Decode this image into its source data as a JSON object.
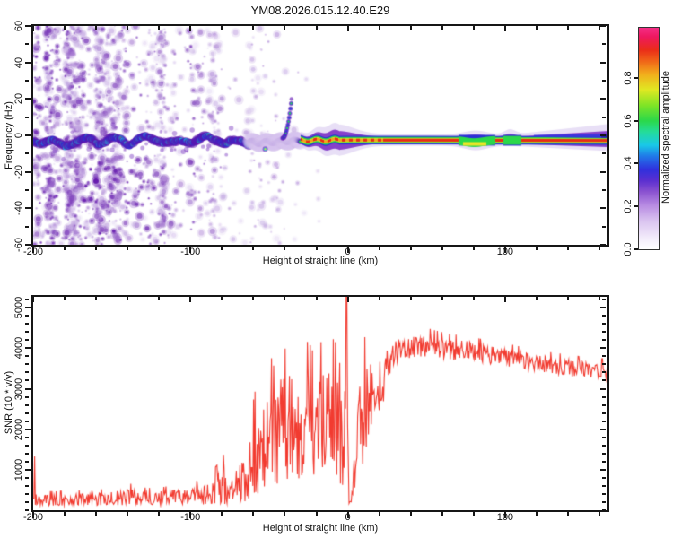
{
  "title": "YM08.2026.015.12.40.E29",
  "colorbar": {
    "label": "Normalized spectral amplitude",
    "tick_values": [
      0.0,
      0.2,
      0.4,
      0.6,
      0.8
    ],
    "tick_labels": [
      "0.0",
      "0.2",
      "0.4",
      "0.6",
      "0.8"
    ],
    "range": [
      0,
      1.033
    ],
    "stops": [
      [
        0,
        "#ffffff"
      ],
      [
        0.05,
        "#f3ecfb"
      ],
      [
        0.13,
        "#d9c2ef"
      ],
      [
        0.2,
        "#b78ae2"
      ],
      [
        0.26,
        "#8a52d0"
      ],
      [
        0.31,
        "#5b2fd0"
      ],
      [
        0.36,
        "#3030dd"
      ],
      [
        0.42,
        "#2079e8"
      ],
      [
        0.47,
        "#19c8e8"
      ],
      [
        0.53,
        "#24dc9a"
      ],
      [
        0.58,
        "#2bd84a"
      ],
      [
        0.65,
        "#7fe426"
      ],
      [
        0.72,
        "#e0e822"
      ],
      [
        0.79,
        "#f2ae1c"
      ],
      [
        0.85,
        "#f06418"
      ],
      [
        0.9,
        "#ea2d18"
      ],
      [
        0.96,
        "#ee1860"
      ],
      [
        1,
        "#f52d86"
      ]
    ]
  },
  "spectrogram": {
    "xlabel": "Height of straight line (km)",
    "ylabel": "Frequency (Hz)",
    "x_range": [
      -200,
      165.1
    ],
    "y_range": [
      -60,
      60
    ],
    "x_major_ticks": [
      -200,
      -100,
      0,
      100
    ],
    "x_major_labels": [
      "-200",
      "-100",
      "0",
      "100"
    ],
    "x_minor_step": 20,
    "y_major_ticks": [
      -60,
      -40,
      -20,
      0,
      20,
      40,
      60
    ],
    "y_major_labels": [
      "-60",
      "-40",
      "-20",
      "0",
      "20",
      "40",
      "60"
    ],
    "y_minor_step": 10
  },
  "snr": {
    "xlabel": "Height of straight line (km)",
    "ylabel": "SNR (10 * v/v)",
    "x_range": [
      -200,
      165.1
    ],
    "y_range": [
      0,
      5270
    ],
    "x_major_ticks": [
      -200,
      -100,
      0,
      100
    ],
    "x_major_labels": [
      "-200",
      "-100",
      "0",
      "100"
    ],
    "x_minor_step": 20,
    "y_major_ticks": [
      1000,
      2000,
      3000,
      4000,
      5000
    ],
    "y_major_labels": [
      "1000",
      "2000",
      "3000",
      "4000",
      "5000"
    ],
    "y_minor_step": 200,
    "line_color": "#f23b30"
  },
  "chart_data": [
    {
      "type": "heatmap",
      "title": "YM08.2026.015.12.40.E29",
      "xlabel": "Height of straight line (km)",
      "ylabel": "Frequency (Hz)",
      "zlabel": "Normalized spectral amplitude",
      "xlim": [
        -200,
        165.1
      ],
      "ylim": [
        -60,
        60
      ],
      "zlim": [
        0,
        1
      ],
      "description": "Doppler spectrum vs height: scattered purple noise speckles fill the left half (heights -200 to about -30 km, all frequencies, density decreasing to the right); a wavy echo band near 0 Hz runs across all heights - blobby cyan/green spots inside dark purple from -200 to -62 km, tightening into a continuous red-cored stripe with green halo and purple fringe from -30 km to the right edge",
      "seeds": {
        "noise": 77,
        "band": 411,
        "snr": 913
      },
      "band_center_keypoints": [
        [
          -200,
          -3.2
        ],
        [
          -190,
          -2.4
        ],
        [
          -180,
          -3.6
        ],
        [
          -170,
          -2.8
        ],
        [
          -160,
          -3.8
        ],
        [
          -150,
          -2.6
        ],
        [
          -140,
          -3.4
        ],
        [
          -130,
          -2.4
        ],
        [
          -120,
          -3.0
        ],
        [
          -110,
          -4.0
        ],
        [
          -100,
          -3.2
        ],
        [
          -90,
          -2.6
        ],
        [
          -80,
          -3.8
        ],
        [
          -70,
          -4.2
        ],
        [
          -62,
          -3.8
        ],
        [
          -55,
          -4.0
        ],
        [
          -48,
          -3.6
        ],
        [
          -40,
          -3.2
        ],
        [
          -30,
          -2.8
        ],
        [
          0,
          -2.6
        ],
        [
          50,
          -2.6
        ],
        [
          100,
          -2.7
        ],
        [
          165,
          -2.8
        ]
      ],
      "band_segments": [
        {
          "from": -200,
          "to": -62,
          "style": "blobby",
          "half_width_hz": 5
        },
        {
          "from": -62,
          "to": -30,
          "style": "transition",
          "half_width_hz": 3.5
        },
        {
          "from": -30,
          "to": 165,
          "style": "line",
          "half_width_hz": 3.3
        }
      ],
      "features": [
        {
          "type": "updraft_curl",
          "km_start": -41.5,
          "km_end": -36,
          "freq_peak_hz": 18
        },
        {
          "type": "sub_blob",
          "km": -52.5,
          "freq_hz": -7.5
        },
        {
          "type": "core_gap_green",
          "km_start": 70,
          "km_end": 93.5
        },
        {
          "type": "core_gap_green_bump_above",
          "km_start": 98.5,
          "km_end": 110
        },
        {
          "type": "fringe_widens_upward",
          "km_start": 105,
          "km_end": 165,
          "top_fringe_hz_at_edge": 9
        }
      ],
      "noise_field": {
        "km_from": -200,
        "km_to": -14,
        "dense_cluster": {
          "km": [
            -168,
            -112
          ],
          "hz": [
            -58,
            -12
          ]
        },
        "boost_column_km": [
          -102,
          -95
        ],
        "gap_column_km": [
          -80,
          -66
        ]
      }
    },
    {
      "type": "line",
      "xlabel": "Height of straight line (km)",
      "ylabel": "SNR (10 * v/v)",
      "xlim": [
        -200,
        165.1
      ],
      "ylim": [
        0,
        5270
      ],
      "series_name": "SNR",
      "edge_spike": {
        "km": -199,
        "value": 1330
      },
      "zero_spike": {
        "km": -0.9,
        "value": 5268
      },
      "post_spike_dip": {
        "km_from": 0.4,
        "km_to": 2.4,
        "value": 150
      },
      "envelope_keypoints_km_mean_amp": [
        [
          -200,
          260,
          170
        ],
        [
          -185,
          250,
          160
        ],
        [
          -170,
          260,
          170
        ],
        [
          -160,
          270,
          180
        ],
        [
          -150,
          280,
          190
        ],
        [
          -140,
          330,
          260
        ],
        [
          -132,
          300,
          200
        ],
        [
          -125,
          290,
          190
        ],
        [
          -118,
          300,
          200
        ],
        [
          -110,
          320,
          220
        ],
        [
          -103,
          340,
          240
        ],
        [
          -97,
          360,
          260
        ],
        [
          -92,
          390,
          300
        ],
        [
          -87,
          430,
          360
        ],
        [
          -82,
          520,
          480
        ],
        [
          -79,
          620,
          560
        ],
        [
          -76,
          520,
          430
        ],
        [
          -72,
          600,
          520
        ],
        [
          -68,
          700,
          620
        ],
        [
          -64,
          850,
          780
        ],
        [
          -61,
          1150,
          1000
        ],
        [
          -58,
          1450,
          1250
        ],
        [
          -55,
          1350,
          1150
        ],
        [
          -52,
          1600,
          1350
        ],
        [
          -49,
          1800,
          1500
        ],
        [
          -46,
          1600,
          1350
        ],
        [
          -43,
          2050,
          1600
        ],
        [
          -40,
          1950,
          1500
        ],
        [
          -37,
          2100,
          1550
        ],
        [
          -34,
          1900,
          1450
        ],
        [
          -31,
          2050,
          1500
        ],
        [
          -28,
          2000,
          1550
        ],
        [
          -25,
          2150,
          1500
        ],
        [
          -22,
          1950,
          1450
        ],
        [
          -19,
          2150,
          1400
        ],
        [
          -16,
          2250,
          1450
        ],
        [
          -13,
          2100,
          1500
        ],
        [
          -10,
          2300,
          1450
        ],
        [
          -8,
          2150,
          1500
        ],
        [
          -6,
          1900,
          1450
        ],
        [
          -4,
          1600,
          1300
        ],
        [
          -3,
          1100,
          900
        ],
        [
          -2,
          2600,
          2100
        ],
        [
          -1,
          4200,
          1000
        ],
        [
          0,
          2300,
          2000
        ],
        [
          1,
          300,
          250
        ],
        [
          2,
          200,
          150
        ],
        [
          3,
          500,
          380
        ],
        [
          4,
          950,
          650
        ],
        [
          5,
          1500,
          950
        ],
        [
          7,
          1950,
          1250
        ],
        [
          9,
          2200,
          1400
        ],
        [
          11,
          2400,
          1400
        ],
        [
          13,
          2550,
          1350
        ],
        [
          15,
          2650,
          1300
        ],
        [
          17,
          2850,
          1200
        ],
        [
          19,
          3000,
          1050
        ],
        [
          21,
          3150,
          900
        ],
        [
          23,
          3350,
          750
        ],
        [
          25,
          3500,
          600
        ],
        [
          27,
          3700,
          480
        ],
        [
          29,
          3820,
          420
        ],
        [
          32,
          3900,
          380
        ],
        [
          35,
          3950,
          350
        ],
        [
          38,
          4000,
          330
        ],
        [
          42,
          4030,
          320
        ],
        [
          46,
          4060,
          320
        ],
        [
          50,
          4070,
          320
        ],
        [
          54,
          4040,
          310
        ],
        [
          58,
          4010,
          300
        ],
        [
          62,
          3980,
          300
        ],
        [
          66,
          3950,
          290
        ],
        [
          70,
          3940,
          290
        ],
        [
          74,
          3960,
          290
        ],
        [
          78,
          3920,
          280
        ],
        [
          82,
          3880,
          280
        ],
        [
          86,
          3850,
          270
        ],
        [
          90,
          3820,
          270
        ],
        [
          94,
          3800,
          260
        ],
        [
          98,
          3780,
          260
        ],
        [
          102,
          3760,
          260
        ],
        [
          106,
          3720,
          260
        ],
        [
          110,
          3700,
          250
        ],
        [
          114,
          3680,
          250
        ],
        [
          118,
          3650,
          250
        ],
        [
          122,
          3620,
          250
        ],
        [
          126,
          3600,
          250
        ],
        [
          130,
          3570,
          240
        ],
        [
          134,
          3550,
          240
        ],
        [
          138,
          3530,
          240
        ],
        [
          142,
          3510,
          240
        ],
        [
          146,
          3490,
          230
        ],
        [
          150,
          3470,
          230
        ],
        [
          154,
          3450,
          230
        ],
        [
          158,
          3440,
          230
        ],
        [
          162,
          3430,
          230
        ],
        [
          165,
          3420,
          230
        ]
      ]
    }
  ]
}
